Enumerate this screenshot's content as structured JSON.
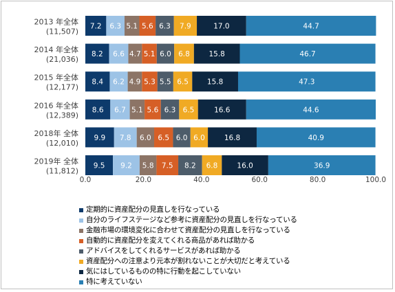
{
  "chart_data": {
    "type": "bar",
    "orientation": "horizontal",
    "stacked": true,
    "categories": [
      {
        "line1": "2013 年全体",
        "line2": "(11,507)"
      },
      {
        "line1": "2014 年全体",
        "line2": "(21,036)"
      },
      {
        "line1": "2015 年全体",
        "line2": "(12,177)"
      },
      {
        "line1": "2016 年全体",
        "line2": "(12,389)"
      },
      {
        "line1": "2018年 全体",
        "line2": "(12,010)"
      },
      {
        "line1": "2019年 全体",
        "line2": "(11,812)"
      }
    ],
    "series": [
      {
        "name": "定期的に資産配分の見直しを行なっている",
        "color": "#0d3a6b",
        "label_color": "#ffffff",
        "values": [
          7.2,
          8.2,
          8.4,
          8.6,
          9.9,
          9.5
        ]
      },
      {
        "name": "自分のライフステージなど参考に資産配分の見直しを行なっている",
        "color": "#9dc3e6",
        "label_color": "#ffffff",
        "values": [
          6.3,
          6.6,
          6.2,
          6.7,
          7.8,
          9.2
        ]
      },
      {
        "name": "金融市場の環境変化に合わせて資産配分の見直しを行なっている",
        "color": "#8c7466",
        "label_color": "#ffffff",
        "values": [
          5.1,
          4.7,
          4.9,
          5.1,
          6.0,
          5.8
        ]
      },
      {
        "name": "自動的に資産配分を変えてくれる商品があれば助かる",
        "color": "#d65f26",
        "label_color": "#ffffff",
        "values": [
          5.6,
          5.1,
          5.3,
          5.6,
          6.5,
          7.5
        ]
      },
      {
        "name": "アドバイスをしてくれるサービスがあれば助かる",
        "color": "#4d5c6a",
        "label_color": "#ffffff",
        "values": [
          6.3,
          6.0,
          5.5,
          6.3,
          6.0,
          8.2
        ]
      },
      {
        "name": "資産配分への注意より元本が割れないことが大切だと考えている",
        "color": "#f0aa24",
        "label_color": "#ffffff",
        "values": [
          7.9,
          6.8,
          6.5,
          6.5,
          6.0,
          6.8
        ]
      },
      {
        "name": "気にはしているものの特に行動を起こしていない",
        "color": "#0d2741",
        "label_color": "#ffffff",
        "values": [
          17.0,
          15.8,
          15.8,
          16.6,
          16.8,
          16.0
        ]
      },
      {
        "name": "特に考えていない",
        "color": "#2a7fb3",
        "label_color": "#ffffff",
        "values": [
          44.7,
          46.7,
          47.3,
          44.6,
          40.9,
          36.9
        ]
      }
    ],
    "x_ticks": [
      "0.0",
      "20.0",
      "40.0",
      "60.0",
      "80.0",
      "100.0"
    ],
    "xlim": [
      0,
      100
    ],
    "grid": false,
    "legend_position": "bottom",
    "value_labels": [
      [
        "7.2",
        "6.3",
        "5.1",
        "5.6",
        "6.3",
        "7.9",
        "17.0",
        "44.7"
      ],
      [
        "8.2",
        "6.6",
        "4.7",
        "5.1",
        "6.0",
        "6.8",
        "15.8",
        "46.7"
      ],
      [
        "8.4",
        "6.2",
        "4.9",
        "5.3",
        "5.5",
        "6.5",
        "15.8",
        "47.3"
      ],
      [
        "8.6",
        "6.7",
        "5.1",
        "5.6",
        "6.3",
        "6.5",
        "16.6",
        "44.6"
      ],
      [
        "9.9",
        "7.8",
        "6.0",
        "6.5",
        "6.0",
        "6.0",
        "16.8",
        "40.9"
      ],
      [
        "9.5",
        "9.2",
        "5.8",
        "7.5",
        "8.2",
        "6.8",
        "16.0",
        "36.9"
      ]
    ]
  }
}
